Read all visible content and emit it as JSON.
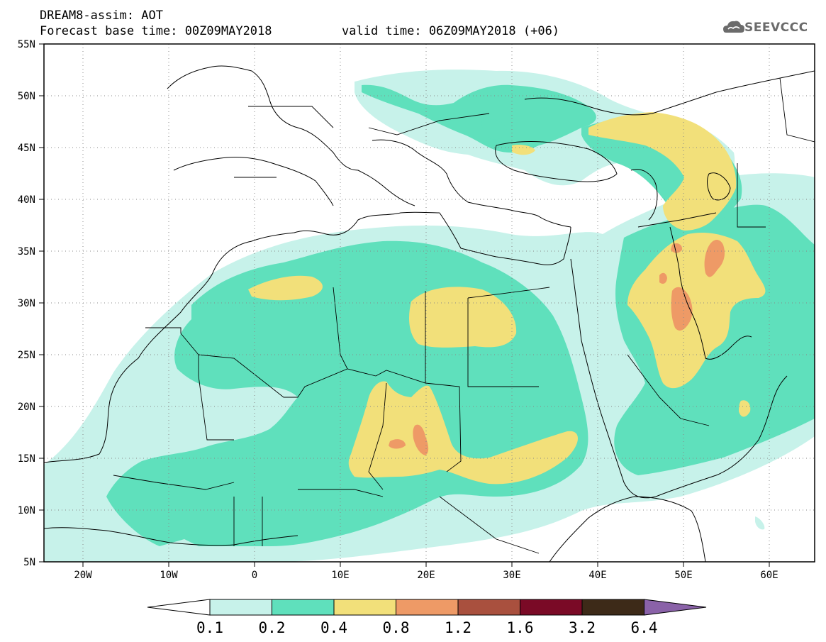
{
  "header": {
    "title": "DREAM8-assim: AOT",
    "base_time": "Forecast base time: 00Z09MAY2018",
    "valid_time": "valid time: 06Z09MAY2018 (+06)"
  },
  "logo": {
    "text": "SEEVCCC",
    "icon": "cloud-icon"
  },
  "axes": {
    "lat_labels": [
      "55N",
      "50N",
      "45N",
      "40N",
      "35N",
      "30N",
      "25N",
      "20N",
      "15N",
      "10N",
      "5N"
    ],
    "lon_labels": [
      "20W",
      "10W",
      "0",
      "10E",
      "20E",
      "30E",
      "40E",
      "50E",
      "60E"
    ],
    "lat_range": [
      5,
      55
    ],
    "lon_range": [
      -25,
      65
    ],
    "grid": "dotted"
  },
  "colorbar": {
    "levels": [
      "0.1",
      "0.2",
      "0.4",
      "0.8",
      "1.2",
      "1.6",
      "3.2",
      "6.4"
    ],
    "colors": [
      "#c7f2ea",
      "#5fe0bc",
      "#f2e07a",
      "#ee9a66",
      "#a9503e",
      "#7a0a26",
      "#3d2a18",
      "#8a62a8"
    ],
    "below_color": "#ffffff"
  }
}
